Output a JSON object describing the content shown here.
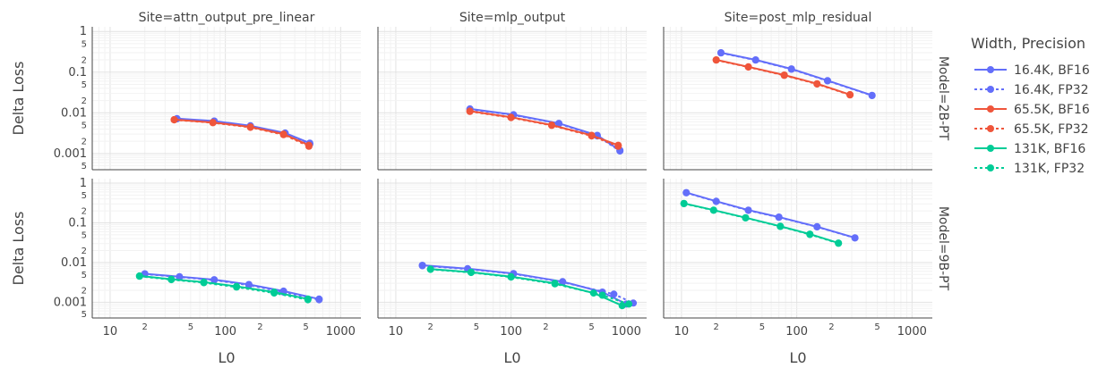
{
  "chart_data": {
    "type": "line",
    "xlabel": "L0",
    "ylabel": "Delta Loss",
    "x_scale": "log",
    "y_scale": "log",
    "xlim": [
      7,
      1500
    ],
    "ylim": [
      0.0004,
      1.3
    ],
    "x_major_ticks": [
      {
        "v": 10,
        "label": "10"
      },
      {
        "v": 100,
        "label": "100"
      },
      {
        "v": 1000,
        "label": "1000"
      }
    ],
    "x_minor_ticks": [
      {
        "v": 20,
        "label": "2"
      },
      {
        "v": 50,
        "label": "5"
      },
      {
        "v": 200,
        "label": "2"
      },
      {
        "v": 500,
        "label": "5"
      }
    ],
    "y_major_ticks": [
      {
        "v": 0.001,
        "label": "0.001"
      },
      {
        "v": 0.01,
        "label": "0.01"
      },
      {
        "v": 0.1,
        "label": "0.1"
      },
      {
        "v": 1,
        "label": "1"
      }
    ],
    "y_minor_ticks": [
      {
        "v": 0.0005,
        "label": "5"
      },
      {
        "v": 0.002,
        "label": "2"
      },
      {
        "v": 0.005,
        "label": "5"
      },
      {
        "v": 0.02,
        "label": "2"
      },
      {
        "v": 0.05,
        "label": "5"
      },
      {
        "v": 0.2,
        "label": "2"
      },
      {
        "v": 0.5,
        "label": "5"
      }
    ],
    "grid": true,
    "legend": {
      "title": "Width, Precision",
      "placement": "right",
      "entries": [
        {
          "label": "16.4K, BF16",
          "color": "#636efa",
          "dash": "solid"
        },
        {
          "label": "16.4K, FP32",
          "color": "#636efa",
          "dash": "dot"
        },
        {
          "label": "65.5K, BF16",
          "color": "#ef553b",
          "dash": "solid"
        },
        {
          "label": "65.5K, FP32",
          "color": "#ef553b",
          "dash": "dot"
        },
        {
          "label": "131K, BF16",
          "color": "#00cc96",
          "dash": "solid"
        },
        {
          "label": "131K, FP32",
          "color": "#00cc96",
          "dash": "dot"
        }
      ]
    },
    "columns": [
      "Site=attn_output_pre_linear",
      "Site=mlp_output",
      "Site=post_mlp_residual"
    ],
    "rows": [
      "Model=2B-PT",
      "Model=9B-PT"
    ],
    "panels": [
      {
        "row": 0,
        "col": 0,
        "series": [
          {
            "legend_index": 0,
            "points": [
              [
                38,
                0.0072
              ],
              [
                80,
                0.0063
              ],
              [
                165,
                0.0048
              ],
              [
                330,
                0.0032
              ],
              [
                540,
                0.0018
              ]
            ]
          },
          {
            "legend_index": 1,
            "points": [
              [
                38,
                0.0071
              ],
              [
                80,
                0.0062
              ],
              [
                165,
                0.0047
              ],
              [
                330,
                0.0031
              ],
              [
                540,
                0.0017
              ]
            ]
          },
          {
            "legend_index": 2,
            "points": [
              [
                36,
                0.0068
              ],
              [
                78,
                0.0058
              ],
              [
                165,
                0.0045
              ],
              [
                320,
                0.003
              ],
              [
                530,
                0.0016
              ]
            ]
          },
          {
            "legend_index": 3,
            "points": [
              [
                36,
                0.0067
              ],
              [
                78,
                0.0057
              ],
              [
                165,
                0.0044
              ],
              [
                320,
                0.0029
              ],
              [
                530,
                0.0015
              ]
            ]
          }
        ]
      },
      {
        "row": 0,
        "col": 1,
        "series": [
          {
            "legend_index": 0,
            "points": [
              [
                44,
                0.0125
              ],
              [
                105,
                0.009
              ],
              [
                260,
                0.0055
              ],
              [
                560,
                0.0028
              ],
              [
                880,
                0.0012
              ]
            ]
          },
          {
            "legend_index": 1,
            "points": [
              [
                44,
                0.0122
              ],
              [
                105,
                0.0088
              ],
              [
                260,
                0.0054
              ],
              [
                560,
                0.0027
              ],
              [
                880,
                0.00115
              ]
            ]
          },
          {
            "legend_index": 2,
            "points": [
              [
                44,
                0.011
              ],
              [
                100,
                0.0078
              ],
              [
                225,
                0.005
              ],
              [
                500,
                0.0028
              ],
              [
                850,
                0.0016
              ]
            ]
          },
          {
            "legend_index": 3,
            "points": [
              [
                44,
                0.0108
              ],
              [
                100,
                0.0076
              ],
              [
                225,
                0.0049
              ],
              [
                500,
                0.0027
              ],
              [
                850,
                0.0015
              ]
            ]
          }
        ]
      },
      {
        "row": 0,
        "col": 2,
        "series": [
          {
            "legend_index": 0,
            "points": [
              [
                22,
                0.3
              ],
              [
                44,
                0.2
              ],
              [
                90,
                0.12
              ],
              [
                185,
                0.062
              ],
              [
                450,
                0.027
              ]
            ]
          },
          {
            "legend_index": 1,
            "points": [
              [
                22,
                0.295
              ],
              [
                44,
                0.197
              ],
              [
                90,
                0.118
              ],
              [
                185,
                0.061
              ],
              [
                450,
                0.0265
              ]
            ]
          },
          {
            "legend_index": 2,
            "points": [
              [
                20,
                0.2
              ],
              [
                38,
                0.135
              ],
              [
                78,
                0.085
              ],
              [
                150,
                0.052
              ],
              [
                290,
                0.028
              ]
            ]
          },
          {
            "legend_index": 3,
            "points": [
              [
                20,
                0.197
              ],
              [
                38,
                0.133
              ],
              [
                78,
                0.083
              ],
              [
                150,
                0.051
              ],
              [
                290,
                0.0275
              ]
            ]
          }
        ]
      },
      {
        "row": 1,
        "col": 0,
        "series": [
          {
            "legend_index": 0,
            "points": [
              [
                20,
                0.0052
              ],
              [
                40,
                0.0044
              ],
              [
                80,
                0.0037
              ],
              [
                160,
                0.0028
              ],
              [
                320,
                0.0019
              ],
              [
                650,
                0.0012
              ]
            ]
          },
          {
            "legend_index": 1,
            "points": [
              [
                20,
                0.0051
              ],
              [
                40,
                0.0043
              ],
              [
                80,
                0.0036
              ],
              [
                160,
                0.0027
              ],
              [
                320,
                0.0018
              ],
              [
                650,
                0.00115
              ]
            ]
          },
          {
            "legend_index": 4,
            "points": [
              [
                18,
                0.0046
              ],
              [
                34,
                0.0038
              ],
              [
                65,
                0.0032
              ],
              [
                125,
                0.0025
              ],
              [
                265,
                0.0018
              ],
              [
                520,
                0.0012
              ]
            ]
          },
          {
            "legend_index": 5,
            "points": [
              [
                18,
                0.0045
              ],
              [
                34,
                0.0037
              ],
              [
                65,
                0.0031
              ],
              [
                125,
                0.0024
              ],
              [
                265,
                0.0017
              ],
              [
                520,
                0.00115
              ]
            ]
          }
        ]
      },
      {
        "row": 1,
        "col": 1,
        "series": [
          {
            "legend_index": 0,
            "points": [
              [
                17,
                0.0085
              ],
              [
                42,
                0.007
              ],
              [
                105,
                0.0053
              ],
              [
                280,
                0.0033
              ],
              [
                620,
                0.0018
              ],
              [
                1000,
                0.0009
              ]
            ]
          },
          {
            "legend_index": 1,
            "points": [
              [
                17,
                0.0083
              ],
              [
                42,
                0.0068
              ],
              [
                105,
                0.0052
              ],
              [
                280,
                0.0032
              ],
              [
                780,
                0.0016
              ],
              [
                1150,
                0.00095
              ]
            ]
          },
          {
            "legend_index": 4,
            "points": [
              [
                20,
                0.0068
              ],
              [
                45,
                0.0057
              ],
              [
                100,
                0.0044
              ],
              [
                240,
                0.003
              ],
              [
                520,
                0.0017
              ],
              [
                920,
                0.00082
              ]
            ]
          },
          {
            "legend_index": 5,
            "points": [
              [
                20,
                0.0067
              ],
              [
                45,
                0.0056
              ],
              [
                100,
                0.0043
              ],
              [
                240,
                0.0029
              ],
              [
                620,
                0.0015
              ],
              [
                1050,
                0.0009
              ]
            ]
          }
        ]
      },
      {
        "row": 1,
        "col": 2,
        "series": [
          {
            "legend_index": 0,
            "points": [
              [
                11,
                0.58
              ],
              [
                20,
                0.35
              ],
              [
                38,
                0.21
              ],
              [
                70,
                0.14
              ],
              [
                150,
                0.08
              ],
              [
                320,
                0.042
              ]
            ]
          },
          {
            "legend_index": 1,
            "points": [
              [
                11,
                0.57
              ],
              [
                20,
                0.345
              ],
              [
                38,
                0.205
              ],
              [
                70,
                0.138
              ],
              [
                150,
                0.079
              ],
              [
                320,
                0.0415
              ]
            ]
          },
          {
            "legend_index": 4,
            "points": [
              [
                10.5,
                0.31
              ],
              [
                19,
                0.21
              ],
              [
                36,
                0.135
              ],
              [
                72,
                0.082
              ],
              [
                130,
                0.052
              ],
              [
                230,
                0.031
              ]
            ]
          },
          {
            "legend_index": 5,
            "points": [
              [
                10.5,
                0.305
              ],
              [
                19,
                0.207
              ],
              [
                36,
                0.133
              ],
              [
                72,
                0.081
              ],
              [
                130,
                0.051
              ],
              [
                230,
                0.0305
              ]
            ]
          }
        ]
      }
    ]
  }
}
